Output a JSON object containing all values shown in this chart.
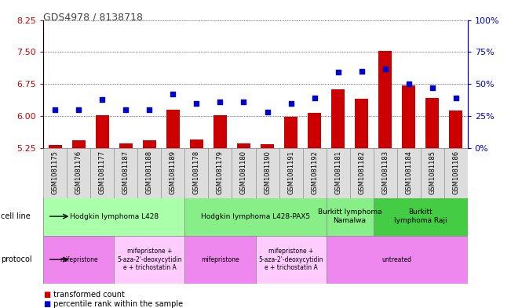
{
  "title": "GDS4978 / 8138718",
  "samples": [
    "GSM1081175",
    "GSM1081176",
    "GSM1081177",
    "GSM1081187",
    "GSM1081188",
    "GSM1081189",
    "GSM1081178",
    "GSM1081179",
    "GSM1081180",
    "GSM1081190",
    "GSM1081191",
    "GSM1081192",
    "GSM1081181",
    "GSM1081182",
    "GSM1081183",
    "GSM1081184",
    "GSM1081185",
    "GSM1081186"
  ],
  "bar_values": [
    5.32,
    5.42,
    6.02,
    5.35,
    5.42,
    6.15,
    5.45,
    6.02,
    5.35,
    5.33,
    5.98,
    6.08,
    6.62,
    6.4,
    7.52,
    6.72,
    6.42,
    6.12
  ],
  "dot_values": [
    30,
    30,
    38,
    30,
    30,
    42,
    35,
    36,
    36,
    28,
    35,
    39,
    59,
    60,
    62,
    50,
    47,
    39
  ],
  "ylim_left": [
    5.25,
    8.25
  ],
  "ylim_right": [
    0,
    100
  ],
  "yticks_left": [
    5.25,
    6.0,
    6.75,
    7.5,
    8.25
  ],
  "yticks_right": [
    0,
    25,
    50,
    75,
    100
  ],
  "bar_color": "#cc0000",
  "dot_color": "#0000cc",
  "cell_line_groups": [
    {
      "label": "Hodgkin lymphoma L428",
      "start": 0,
      "end": 5,
      "color": "#aaffaa"
    },
    {
      "label": "Hodgkin lymphoma L428-PAX5",
      "start": 6,
      "end": 11,
      "color": "#88ee88"
    },
    {
      "label": "Burkitt lymphoma\nNamalwa",
      "start": 12,
      "end": 13,
      "color": "#88ee88"
    },
    {
      "label": "Burkitt\nlymphoma Raji",
      "start": 14,
      "end": 17,
      "color": "#44cc44"
    }
  ],
  "protocol_groups": [
    {
      "label": "mifepristone",
      "start": 0,
      "end": 2,
      "color": "#ee88ee"
    },
    {
      "label": "mifepristone +\n5-aza-2'-deoxycytidin\ne + trichostatin A",
      "start": 3,
      "end": 5,
      "color": "#ffccff"
    },
    {
      "label": "mifepristone",
      "start": 6,
      "end": 8,
      "color": "#ee88ee"
    },
    {
      "label": "mifepristone +\n5-aza-2'-deoxycytidin\ne + trichostatin A",
      "start": 9,
      "end": 11,
      "color": "#ffccff"
    },
    {
      "label": "untreated",
      "start": 12,
      "end": 17,
      "color": "#ee88ee"
    }
  ],
  "background_color": "#ffffff",
  "grid_color": "#000000",
  "tick_label_color_left": "#cc0000",
  "tick_label_color_right": "#0000cc",
  "xticklabels_bg": "#dddddd"
}
